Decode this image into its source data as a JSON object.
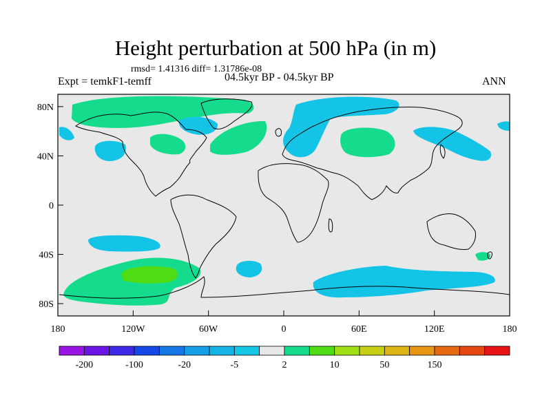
{
  "figure": {
    "title": "Height perturbation at 500 hPa (in m)",
    "stats": "rmsd= 1.41316 diff= 1.31786e-08",
    "expt": "Expt = temkF1-temff",
    "period": "04.5kyr BP - 04.5kyr BP",
    "season": "ANN"
  },
  "map": {
    "lon_ticks": [
      "180",
      "120W",
      "60W",
      "0",
      "60E",
      "120E",
      "180"
    ],
    "lat_ticks": [
      "80N",
      "40N",
      "0",
      "40S",
      "80S"
    ],
    "land_color": "#e8e8e8",
    "coast_color": "#000000"
  },
  "colorbar": {
    "colors": [
      "#9a14e6",
      "#6a14e6",
      "#3c28e6",
      "#1448e6",
      "#1478e6",
      "#149ee6",
      "#14b4e6",
      "#14c8e6",
      "#e8e8e8",
      "#14dc8c",
      "#50dc14",
      "#a0e014",
      "#c8d014",
      "#dcb414",
      "#e69614",
      "#e66a14",
      "#e64814",
      "#e61414"
    ],
    "labels": [
      "-200",
      "-100",
      "-20",
      "-5",
      "2",
      "10",
      "50",
      "150"
    ]
  },
  "anomaly_colors": {
    "neg": "#14c4e6",
    "pos": "#14dc8c",
    "strong_pos": "#50dc14"
  }
}
